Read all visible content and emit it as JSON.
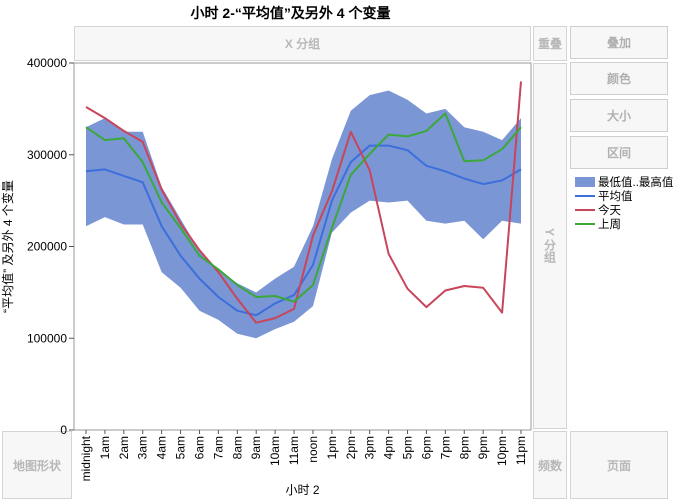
{
  "title": "小时 2-“平均值”及另外 4 个变量",
  "zones": {
    "x_group": "X 分组",
    "y_group": "Y 分组",
    "overlap": "重叠",
    "freq": "频数",
    "map_shape": "地图形状",
    "page": "页面"
  },
  "side_buttons": {
    "overlay": "叠加",
    "color": "颜色",
    "size": "大小",
    "interval": "区间"
  },
  "legend": {
    "band": "最低值..最高值",
    "mean": "平均值",
    "today": "今天",
    "last_week": "上周"
  },
  "colors": {
    "band": "#7b96d4",
    "mean": "#3c6fdc",
    "today": "#c8455a",
    "last_week": "#3aa83a"
  },
  "chart_data": {
    "type": "area",
    "title": "小时 2-“平均值”及另外 4 个变量",
    "xlabel": "小时 2",
    "ylabel": "“平均值” 及另外 4 个变量",
    "ylim": [
      0,
      400000
    ],
    "yticks": [
      0,
      100000,
      200000,
      300000,
      400000
    ],
    "ytick_labels": [
      "0",
      "100000",
      "200000",
      "300000",
      "400000"
    ],
    "categories": [
      "midnight",
      "1am",
      "2am",
      "3am",
      "4am",
      "5am",
      "6am",
      "7am",
      "8am",
      "9am",
      "10am",
      "11am",
      "noon",
      "1pm",
      "2pm",
      "3pm",
      "4pm",
      "5pm",
      "6pm",
      "7pm",
      "8pm",
      "9pm",
      "10pm",
      "11pm"
    ],
    "band": {
      "name": "最低值..最高值",
      "low": [
        222000,
        232000,
        224000,
        224000,
        172000,
        155000,
        130000,
        120000,
        105000,
        100000,
        110000,
        118000,
        135000,
        215000,
        237000,
        250000,
        248000,
        250000,
        228000,
        225000,
        228000,
        208000,
        228000,
        225000
      ],
      "high": [
        330000,
        340000,
        325000,
        325000,
        265000,
        230000,
        195000,
        175000,
        160000,
        150000,
        165000,
        178000,
        222000,
        295000,
        348000,
        365000,
        370000,
        360000,
        345000,
        350000,
        330000,
        325000,
        316000,
        340000
      ]
    },
    "series": [
      {
        "name": "平均值",
        "values": [
          282000,
          284000,
          277000,
          270000,
          222000,
          190000,
          165000,
          145000,
          130000,
          125000,
          138000,
          147000,
          180000,
          250000,
          292000,
          310000,
          310000,
          305000,
          288000,
          282000,
          274000,
          268000,
          272000,
          284000
        ]
      },
      {
        "name": "今天",
        "values": [
          352000,
          340000,
          326000,
          314000,
          262000,
          225000,
          196000,
          172000,
          143000,
          117000,
          122000,
          132000,
          212000,
          260000,
          325000,
          283000,
          192000,
          154000,
          134000,
          152000,
          157000,
          155000,
          128000,
          380000
        ]
      },
      {
        "name": "上周",
        "values": [
          330000,
          316000,
          318000,
          292000,
          248000,
          220000,
          190000,
          175000,
          158000,
          145000,
          146000,
          140000,
          158000,
          220000,
          278000,
          301000,
          322000,
          320000,
          326000,
          345000,
          293000,
          294000,
          306000,
          330000
        ]
      }
    ]
  }
}
